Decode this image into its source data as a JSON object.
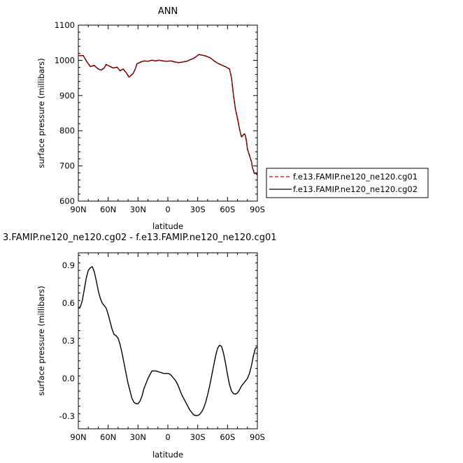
{
  "chart_data": [
    {
      "type": "line",
      "title": "ANN",
      "xlabel": "latitude",
      "ylabel": "surface pressure (millibars)",
      "xlim": [
        90,
        -90
      ],
      "ylim": [
        600,
        1100
      ],
      "x_ticks": [
        90,
        60,
        30,
        0,
        -30,
        -60,
        -90
      ],
      "x_tick_labels": [
        "90N",
        "60N",
        "30N",
        "0",
        "30S",
        "60S",
        "90S"
      ],
      "y_ticks": [
        600,
        700,
        800,
        900,
        1000,
        1100
      ],
      "y_tick_labels": [
        "600",
        "700",
        "800",
        "900",
        "1000",
        "1100"
      ],
      "legend": "right, outside",
      "x": [
        90,
        85,
        82,
        78,
        74,
        70,
        67,
        64,
        62,
        58,
        55,
        51,
        48,
        45,
        42,
        39,
        35,
        33,
        31,
        27,
        24,
        20,
        16,
        12,
        9,
        5,
        1,
        -3,
        -7,
        -11,
        -15,
        -19,
        -23,
        -27,
        -31,
        -35,
        -39,
        -43,
        -47,
        -51,
        -55,
        -59,
        -62,
        -64,
        -66,
        -68,
        -70,
        -72,
        -74,
        -76,
        -77,
        -78,
        -79,
        -80,
        -82,
        -84,
        -85,
        -87,
        -88,
        -89,
        -90
      ],
      "series": [
        {
          "name": "f.e13.FAMIP.ne120_ne120.cg01",
          "color": "#cc0000",
          "dash": "dashed",
          "values": [
            1013,
            1013,
            998,
            982,
            985,
            975,
            972,
            978,
            988,
            982,
            978,
            980,
            970,
            975,
            965,
            952,
            962,
            973,
            990,
            995,
            998,
            997,
            1000,
            998,
            1000,
            998,
            997,
            998,
            995,
            993,
            995,
            997,
            1002,
            1007,
            1016,
            1014,
            1011,
            1006,
            997,
            990,
            985,
            980,
            975,
            950,
            900,
            860,
            835,
            805,
            782,
            788,
            791,
            786,
            770,
            748,
            730,
            712,
            695,
            678,
            680,
            676,
            675
          ]
        },
        {
          "name": "f.e13.FAMIP.ne120_ne120.cg02",
          "color": "#000000",
          "dash": "solid",
          "values": [
            1013.5,
            1013.5,
            998.5,
            982.5,
            985.5,
            975.5,
            972.5,
            978.5,
            988.5,
            982.5,
            978.5,
            980.5,
            970.5,
            975.5,
            965.5,
            952.5,
            962.5,
            973.5,
            990.5,
            995.5,
            998.5,
            997.5,
            1000.5,
            998.5,
            1000.5,
            998.5,
            997.5,
            998.5,
            995.5,
            993.5,
            995.5,
            997.5,
            1002.5,
            1007.5,
            1016.5,
            1014.5,
            1011.5,
            1006.5,
            997.5,
            990.5,
            985.5,
            980.5,
            975.5,
            950.5,
            900.5,
            860.5,
            835.5,
            805.5,
            782.5,
            788.5,
            791.5,
            786.5,
            770.5,
            748.5,
            730.5,
            712.5,
            695.5,
            678.5,
            680.5,
            676.5,
            675.5
          ]
        }
      ]
    },
    {
      "type": "line",
      "title": "3.FAMIP.ne120_ne120.cg02 - f.e13.FAMIP.ne120_ne120.cg01",
      "xlabel": "latitude",
      "ylabel": "surface pressure (millibars)",
      "xlim": [
        90,
        -90
      ],
      "ylim": [
        -0.4,
        1.0
      ],
      "x_ticks": [
        90,
        60,
        30,
        0,
        -30,
        -60,
        -90
      ],
      "x_tick_labels": [
        "90N",
        "60N",
        "30N",
        "0",
        "30S",
        "60S",
        "90S"
      ],
      "y_ticks": [
        -0.3,
        0,
        0.3,
        0.6,
        0.9
      ],
      "y_tick_labels": [
        "-0.3",
        "0.0",
        "0.3",
        "0.6",
        "0.9"
      ],
      "x": [
        90,
        88,
        86,
        84,
        82,
        80,
        78,
        76,
        74,
        72,
        70,
        68,
        66,
        64,
        62,
        60,
        58,
        56,
        54,
        52,
        50,
        48,
        46,
        44,
        42,
        40,
        38,
        36,
        34,
        32,
        30,
        28,
        26,
        24,
        22,
        20,
        18,
        16,
        14,
        12,
        10,
        8,
        6,
        4,
        2,
        0,
        -2,
        -4,
        -6,
        -8,
        -10,
        -12,
        -14,
        -16,
        -18,
        -20,
        -22,
        -24,
        -26,
        -28,
        -30,
        -32,
        -34,
        -36,
        -38,
        -40,
        -42,
        -44,
        -46,
        -48,
        -50,
        -52,
        -54,
        -56,
        -58,
        -60,
        -62,
        -64,
        -66,
        -68,
        -70,
        -72,
        -74,
        -76,
        -78,
        -80,
        -82,
        -84,
        -86,
        -88,
        -90
      ],
      "series": [
        {
          "name": "",
          "color": "#000000",
          "values": [
            0.56,
            0.57,
            0.62,
            0.71,
            0.8,
            0.86,
            0.88,
            0.89,
            0.85,
            0.78,
            0.7,
            0.64,
            0.6,
            0.58,
            0.56,
            0.51,
            0.45,
            0.39,
            0.35,
            0.34,
            0.32,
            0.27,
            0.2,
            0.12,
            0.04,
            -0.04,
            -0.1,
            -0.16,
            -0.19,
            -0.2,
            -0.2,
            -0.18,
            -0.14,
            -0.08,
            -0.04,
            0.0,
            0.03,
            0.06,
            0.06,
            0.06,
            0.055,
            0.05,
            0.045,
            0.04,
            0.04,
            0.04,
            0.035,
            0.02,
            0.0,
            -0.02,
            -0.05,
            -0.09,
            -0.13,
            -0.16,
            -0.19,
            -0.22,
            -0.25,
            -0.27,
            -0.29,
            -0.295,
            -0.295,
            -0.285,
            -0.265,
            -0.235,
            -0.19,
            -0.13,
            -0.06,
            0.02,
            0.1,
            0.18,
            0.24,
            0.265,
            0.255,
            0.2,
            0.12,
            0.03,
            -0.05,
            -0.1,
            -0.12,
            -0.125,
            -0.115,
            -0.09,
            -0.06,
            -0.04,
            -0.02,
            0.0,
            0.04,
            0.1,
            0.18,
            0.24,
            0.25
          ]
        }
      ]
    }
  ]
}
